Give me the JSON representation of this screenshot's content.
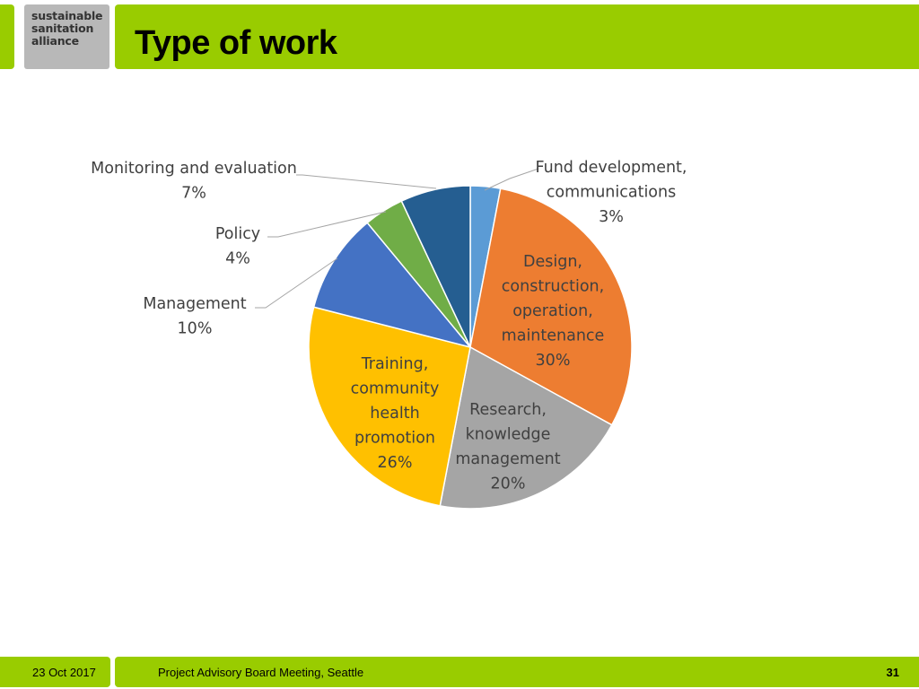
{
  "header": {
    "logo_lines": [
      "sustainable",
      "sanitation",
      "alliance"
    ],
    "title": "Type of work"
  },
  "footer": {
    "date": "23 Oct 2017",
    "meeting": "Project Advisory Board Meeting, Seattle",
    "page": "31"
  },
  "colors": {
    "brand_green": "#99cc00"
  },
  "chart_data": {
    "type": "pie",
    "title": "",
    "slices": [
      {
        "label_lines": [
          "Fund development,",
          "communications"
        ],
        "pct_label": "3%",
        "value": 3,
        "color": "#5b9bd5"
      },
      {
        "label_lines": [
          "Design,",
          "construction,",
          "operation,",
          "maintenance"
        ],
        "pct_label": "30%",
        "value": 30,
        "color": "#ed7d31"
      },
      {
        "label_lines": [
          "Research,",
          "knowledge",
          "management"
        ],
        "pct_label": "20%",
        "value": 20,
        "color": "#a5a5a5"
      },
      {
        "label_lines": [
          "Training,",
          "community",
          "health",
          "promotion"
        ],
        "pct_label": "26%",
        "value": 26,
        "color": "#ffc000"
      },
      {
        "label_lines": [
          "Management"
        ],
        "pct_label": "10%",
        "value": 10,
        "color": "#4472c4"
      },
      {
        "label_lines": [
          "Policy"
        ],
        "pct_label": "4%",
        "value": 4,
        "color": "#70ad47"
      },
      {
        "label_lines": [
          "Monitoring and evaluation"
        ],
        "pct_label": "7%",
        "value": 7,
        "color": "#255e91"
      }
    ]
  }
}
